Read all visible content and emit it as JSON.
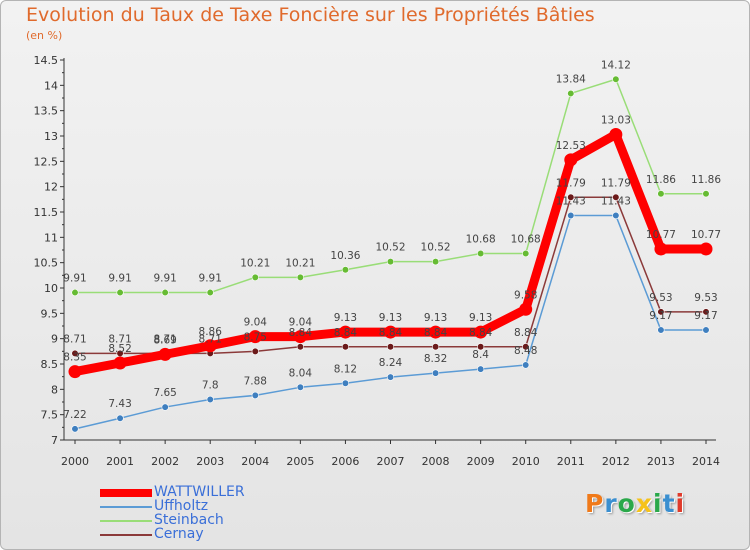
{
  "header": {
    "title": "Evolution du Taux de Taxe Foncière sur les Propriétés Bâties",
    "subtitle": "(en %)"
  },
  "logo": {
    "text": "Proxiti",
    "colors": [
      "#f07a1a",
      "#3a8fd0",
      "#2aa84a",
      "#f5c21b",
      "#2aa84a",
      "#3a8fd0",
      "#e03a2a"
    ]
  },
  "chart_data": {
    "type": "line",
    "title": "Evolution du Taux de Taxe Foncière sur les Propriétés Bâties",
    "ylabel": "(en %)",
    "xlabel": "",
    "ylim": [
      7,
      14.5
    ],
    "yticks": [
      "7",
      "7.5",
      "8",
      "8.5",
      "9",
      "9.5",
      "10",
      "10.5",
      "11",
      "11.5",
      "12",
      "12.5",
      "13",
      "13.5",
      "14",
      "14.5"
    ],
    "x": [
      "2000",
      "2001",
      "2002",
      "2003",
      "2004",
      "2005",
      "2006",
      "2007",
      "2008",
      "2009",
      "2010",
      "2011",
      "2012",
      "2013",
      "2014"
    ],
    "grid": false,
    "legend_position": "bottom-left",
    "series": [
      {
        "name": "Uffholtz",
        "color": "#5b9bd5",
        "marker": "#3f7fbf",
        "values": [
          7.22,
          7.43,
          7.65,
          7.8,
          7.88,
          8.04,
          8.12,
          8.24,
          8.32,
          8.4,
          8.48,
          11.43,
          11.43,
          9.17,
          9.17
        ],
        "labels": [
          "7.22",
          "7.43",
          "7.65",
          "7.8",
          "7.88",
          "8.04",
          "8.12",
          "8.24",
          "8.32",
          "8.4",
          "8.48",
          "11.43",
          "11.43",
          "9.17",
          "9.17"
        ]
      },
      {
        "name": "Steinbach",
        "color": "#99dd77",
        "marker": "#66bb33",
        "values": [
          9.91,
          9.91,
          9.91,
          9.91,
          10.21,
          10.21,
          10.36,
          10.52,
          10.52,
          10.68,
          10.68,
          13.84,
          14.12,
          11.86,
          11.86
        ],
        "labels": [
          "9.91",
          "9.91",
          "9.91",
          "9.91",
          "10.21",
          "10.21",
          "10.36",
          "10.52",
          "10.52",
          "10.68",
          "10.68",
          "13.84",
          "14.12",
          "11.86",
          "11.86"
        ]
      },
      {
        "name": "Cernay",
        "color": "#8b3a3a",
        "marker": "#6b1a1a",
        "values": [
          8.71,
          8.71,
          8.71,
          8.71,
          8.75,
          8.84,
          8.84,
          8.84,
          8.84,
          8.84,
          8.84,
          11.79,
          11.79,
          9.53,
          9.53
        ],
        "labels": [
          "8.71",
          "8.71",
          "8.71",
          "8.71",
          "8.75",
          "8.84",
          "8.84",
          "8.84",
          "8.84",
          "8.84",
          "8.84",
          "11.79",
          "11.79",
          "9.53",
          "9.53"
        ]
      },
      {
        "name": "WATTWILLER",
        "color": "#ff0000",
        "marker": "#ff0000",
        "values": [
          8.35,
          8.52,
          8.69,
          8.86,
          9.04,
          9.04,
          9.13,
          9.13,
          9.13,
          9.13,
          9.58,
          12.53,
          13.03,
          10.77,
          10.77
        ],
        "labels": [
          "8.35",
          "8.52",
          "8.69",
          "8.86",
          "9.04",
          "9.04",
          "9.13",
          "9.13",
          "9.13",
          "9.13",
          "9.58",
          "12.53",
          "13.03",
          "10.77",
          "10.77"
        ]
      }
    ],
    "legend_order": [
      "WATTWILLER",
      "Uffholtz",
      "Steinbach",
      "Cernay"
    ]
  }
}
